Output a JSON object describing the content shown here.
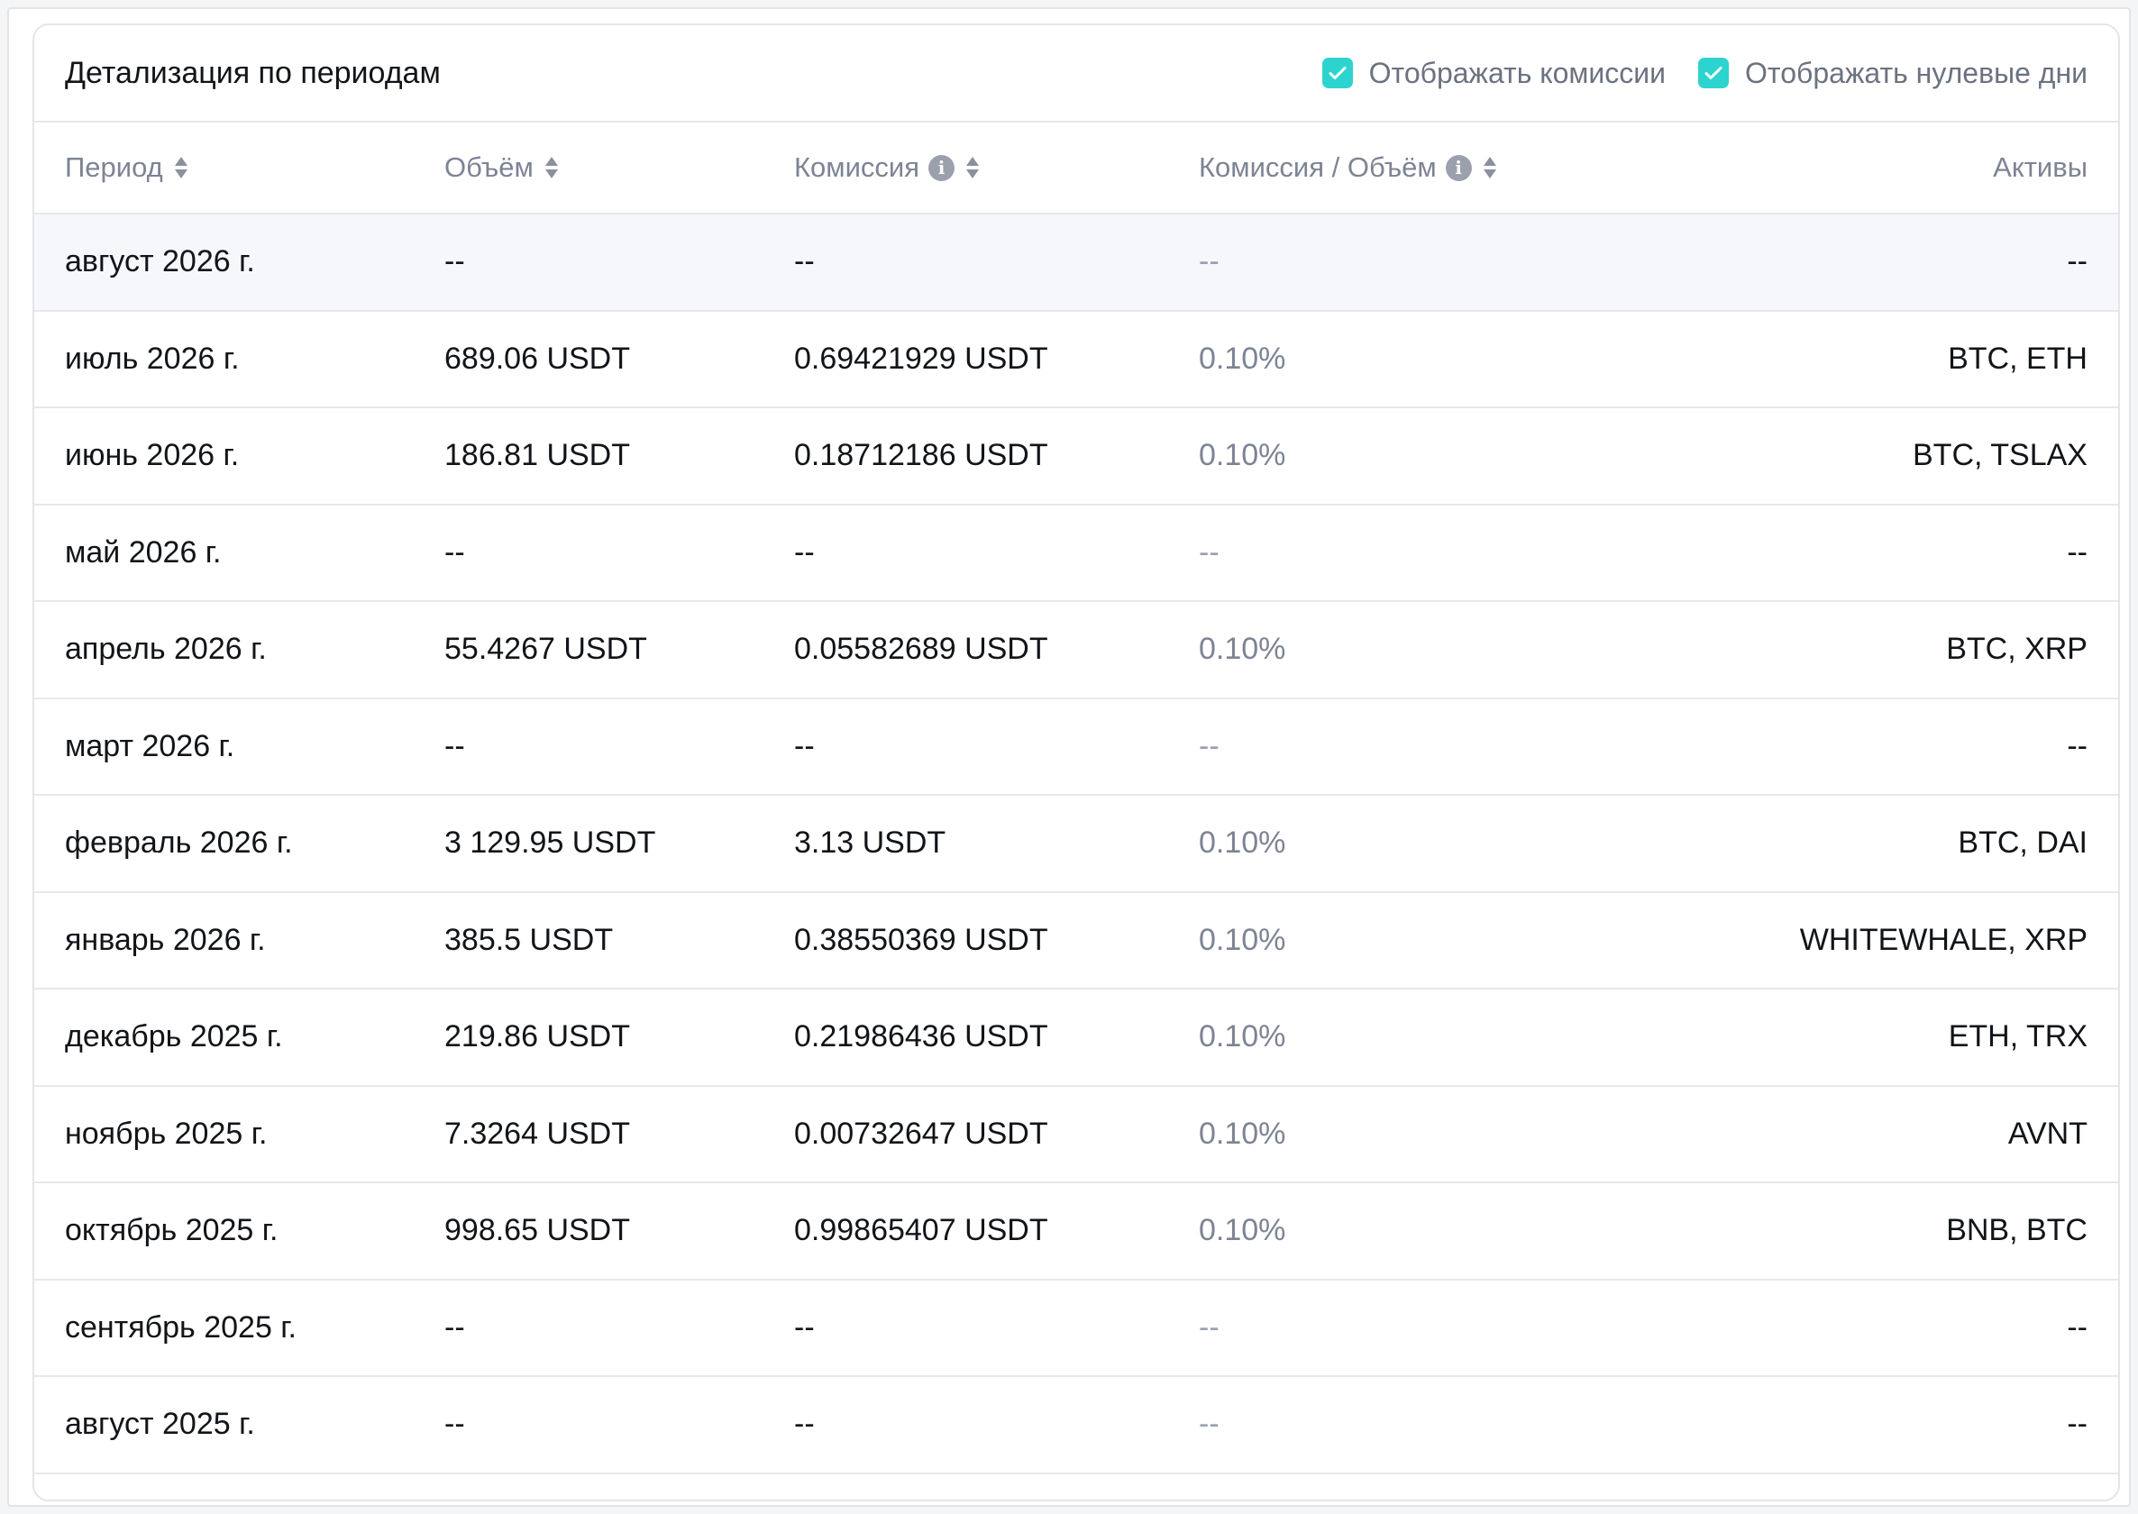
{
  "panel": {
    "title": "Детализация по периодам",
    "toggles": [
      {
        "label": "Отображать комиссии",
        "checked": true
      },
      {
        "label": "Отображать нулевые дни",
        "checked": true
      }
    ],
    "accent_color": "#2dd4cf"
  },
  "table": {
    "headers": {
      "period": "Период",
      "volume": "Объём",
      "commission": "Комиссия",
      "ratio": "Комиссия / Объём",
      "assets": "Активы"
    },
    "rows": [
      {
        "period": "август 2026 г.",
        "volume": "--",
        "commission": "--",
        "ratio": "--",
        "assets": "--"
      },
      {
        "period": "июль 2026 г.",
        "volume": "689.06 USDT",
        "commission": "0.69421929 USDT",
        "ratio": "0.10%",
        "assets": "BTC, ETH"
      },
      {
        "period": "июнь 2026 г.",
        "volume": "186.81 USDT",
        "commission": "0.18712186 USDT",
        "ratio": "0.10%",
        "assets": "BTC, TSLAX"
      },
      {
        "period": "май 2026 г.",
        "volume": "--",
        "commission": "--",
        "ratio": "--",
        "assets": "--"
      },
      {
        "period": "апрель 2026 г.",
        "volume": "55.4267 USDT",
        "commission": "0.05582689 USDT",
        "ratio": "0.10%",
        "assets": "BTC, XRP"
      },
      {
        "period": "март 2026 г.",
        "volume": "--",
        "commission": "--",
        "ratio": "--",
        "assets": "--"
      },
      {
        "period": "февраль 2026 г.",
        "volume": "3 129.95 USDT",
        "commission": "3.13 USDT",
        "ratio": "0.10%",
        "assets": "BTC, DAI"
      },
      {
        "period": "январь 2026 г.",
        "volume": "385.5 USDT",
        "commission": "0.38550369 USDT",
        "ratio": "0.10%",
        "assets": "WHITEWHALE, XRP"
      },
      {
        "period": "декабрь 2025 г.",
        "volume": "219.86 USDT",
        "commission": "0.21986436 USDT",
        "ratio": "0.10%",
        "assets": "ETH, TRX"
      },
      {
        "period": "ноябрь 2025 г.",
        "volume": "7.3264 USDT",
        "commission": "0.00732647 USDT",
        "ratio": "0.10%",
        "assets": "AVNT"
      },
      {
        "period": "октябрь 2025 г.",
        "volume": "998.65 USDT",
        "commission": "0.99865407 USDT",
        "ratio": "0.10%",
        "assets": "BNB, BTC"
      },
      {
        "period": "сентябрь 2025 г.",
        "volume": "--",
        "commission": "--",
        "ratio": "--",
        "assets": "--"
      },
      {
        "period": "август 2025 г.",
        "volume": "--",
        "commission": "--",
        "ratio": "--",
        "assets": "--"
      }
    ]
  }
}
